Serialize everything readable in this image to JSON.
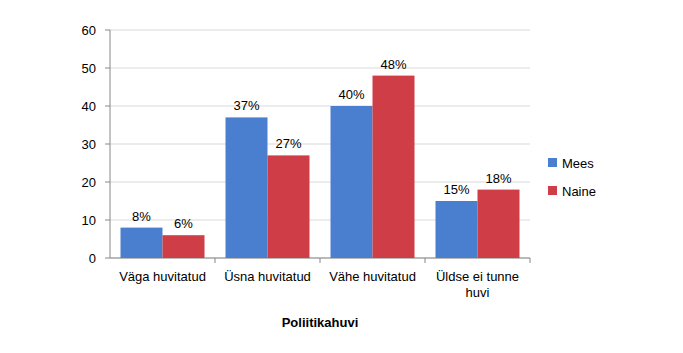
{
  "chart_data": {
    "type": "bar",
    "x_label": "Poliitikahuvi",
    "categories": [
      "Väga huvitatud",
      "Üsna huvitatud",
      "Vähe huvitatud",
      "Üldse ei tunne huvi"
    ],
    "series": [
      {
        "name": "Mees",
        "color": "#4a7ecf",
        "values": [
          8,
          37,
          40,
          15
        ],
        "value_labels": [
          "8%",
          "37%",
          "40%",
          "15%"
        ]
      },
      {
        "name": "Naine",
        "color": "#cf3d47",
        "values": [
          6,
          27,
          48,
          18
        ],
        "value_labels": [
          "6%",
          "27%",
          "48%",
          "18%"
        ]
      }
    ],
    "ylim": [
      0,
      60
    ],
    "yticks": [
      0,
      10,
      20,
      30,
      40,
      50,
      60
    ],
    "grid": true,
    "legend": "right",
    "data_labels": true
  }
}
